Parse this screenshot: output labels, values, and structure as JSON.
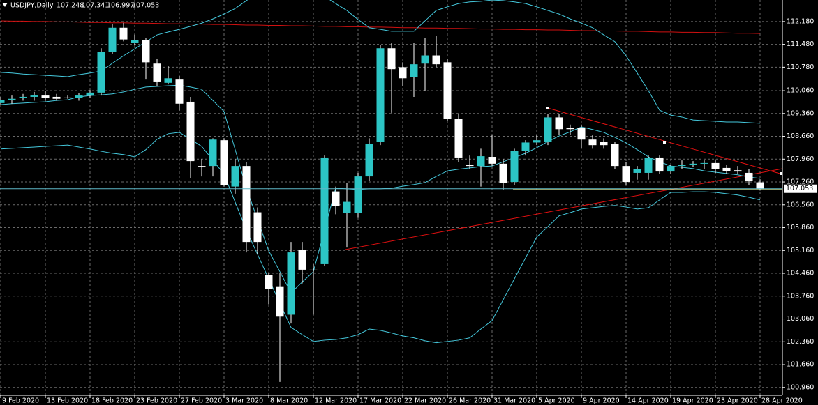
{
  "chart_data": {
    "type": "candlestick",
    "title": "USDJPY,Daily",
    "categories": [
      "9 Feb 2020",
      null,
      null,
      null,
      "13 Feb 2020",
      null,
      null,
      null,
      "18 Feb 2020",
      null,
      null,
      null,
      "23 Feb 2020",
      null,
      null,
      null,
      "27 Feb 2020",
      null,
      null,
      null,
      "3 Mar 2020",
      null,
      null,
      null,
      "8 Mar 2020",
      null,
      null,
      null,
      "12 Mar 2020",
      null,
      null,
      null,
      "17 Mar 2020",
      null,
      null,
      null,
      "22 Mar 2020",
      null,
      null,
      null,
      "26 Mar 2020",
      null,
      null,
      null,
      "31 Mar 2020",
      null,
      null,
      null,
      "5 Apr 2020",
      null,
      null,
      null,
      "9 Apr 2020",
      null,
      null,
      null,
      "14 Apr 2020",
      null,
      null,
      null,
      "19 Apr 2020",
      null,
      null,
      null,
      "23 Apr 2020",
      null,
      null,
      null,
      "28 Apr 2020"
    ],
    "open": [
      109.68,
      109.77,
      109.83,
      109.87,
      109.91,
      109.87,
      109.85,
      109.83,
      109.91,
      110.0,
      111.25,
      111.99,
      111.53,
      111.61,
      110.89,
      110.3,
      110.4,
      109.72,
      107.75,
      107.75,
      108.54,
      107.12,
      107.75,
      106.33,
      104.4,
      104.04,
      103.19,
      105.17,
      104.57,
      104.74,
      106.97,
      106.31,
      106.31,
      107.43,
      108.49,
      111.36,
      110.78,
      110.47,
      110.89,
      111.14,
      110.93,
      109.19,
      107.79,
      107.75,
      108.03,
      107.82,
      107.26,
      108.22,
      108.47,
      108.49,
      109.24,
      108.92,
      108.92,
      108.56,
      108.49,
      108.43,
      107.75,
      107.54,
      107.54,
      108.01,
      107.58,
      107.75,
      107.79,
      107.82,
      107.84,
      107.69,
      107.62,
      107.54,
      107.248
    ],
    "high": [
      109.87,
      109.91,
      109.96,
      110.02,
      110.04,
      109.96,
      109.91,
      109.98,
      110.08,
      111.36,
      112.1,
      112.14,
      111.78,
      111.67,
      111.04,
      110.83,
      110.51,
      109.87,
      107.96,
      108.6,
      108.6,
      107.96,
      107.86,
      106.48,
      104.47,
      104.47,
      105.42,
      105.42,
      104.74,
      108.07,
      107.12,
      107.22,
      107.54,
      108.6,
      111.46,
      111.53,
      110.93,
      111.53,
      111.67,
      111.74,
      111.04,
      109.34,
      108.07,
      108.28,
      108.71,
      107.96,
      108.28,
      108.54,
      108.71,
      109.34,
      109.34,
      109.02,
      109.02,
      108.71,
      108.6,
      108.49,
      107.86,
      107.75,
      108.07,
      108.07,
      107.79,
      107.92,
      107.9,
      107.92,
      107.92,
      107.79,
      107.75,
      107.65,
      107.341
    ],
    "low": [
      109.62,
      109.66,
      109.75,
      109.75,
      109.75,
      109.75,
      109.81,
      109.75,
      109.83,
      109.91,
      111.19,
      111.57,
      111.44,
      110.4,
      110.19,
      110.25,
      109.45,
      107.37,
      107.43,
      107.43,
      107.12,
      106.9,
      105.1,
      105.04,
      103.51,
      101.13,
      102.92,
      104.15,
      103.19,
      104.68,
      106.27,
      105.25,
      106.16,
      107.29,
      108.39,
      109.38,
      110.19,
      109.87,
      110.04,
      110.78,
      109.13,
      107.86,
      107.65,
      107.12,
      107.75,
      107.01,
      107.16,
      108.07,
      108.39,
      108.39,
      108.71,
      108.71,
      108.28,
      108.28,
      108.28,
      107.65,
      107.16,
      107.33,
      107.33,
      107.5,
      107.5,
      107.65,
      107.71,
      107.65,
      107.54,
      107.5,
      107.5,
      107.16,
      106.997
    ],
    "close": [
      109.77,
      109.81,
      109.87,
      109.91,
      109.83,
      109.81,
      109.84,
      109.91,
      110.0,
      111.25,
      111.99,
      111.63,
      111.61,
      110.93,
      110.34,
      110.44,
      109.66,
      107.9,
      107.74,
      108.56,
      107.16,
      107.75,
      105.42,
      105.42,
      103.98,
      103.13,
      105.1,
      104.57,
      104.56,
      108.01,
      106.52,
      106.65,
      107.43,
      108.43,
      111.36,
      110.72,
      110.44,
      110.87,
      111.14,
      110.87,
      109.19,
      108.01,
      107.75,
      108.05,
      107.82,
      107.22,
      108.22,
      108.47,
      108.54,
      109.24,
      108.88,
      108.88,
      108.56,
      108.39,
      108.39,
      107.75,
      107.26,
      107.65,
      108.01,
      107.58,
      107.75,
      107.79,
      107.82,
      107.84,
      107.65,
      107.6,
      107.58,
      107.29,
      107.053
    ],
    "up_color": "#2cc5c5",
    "down_color": "#ffffff",
    "wick_color": "#ffffff",
    "overlays": [
      {
        "color": "#d01010",
        "values": [
          112.2,
          112.19,
          112.19,
          112.18,
          112.18,
          112.17,
          112.17,
          112.16,
          112.15,
          112.15,
          112.14,
          112.14,
          112.13,
          112.13,
          112.12,
          112.11,
          112.11,
          112.1,
          112.1,
          112.09,
          112.09,
          112.08,
          112.07,
          112.07,
          112.06,
          112.06,
          112.05,
          112.05,
          112.04,
          112.03,
          112.03,
          112.02,
          112.02,
          112.01,
          112.01,
          112.0,
          111.99,
          111.99,
          111.98,
          111.98,
          111.97,
          111.97,
          111.96,
          111.95,
          111.95,
          111.94,
          111.94,
          111.93,
          111.93,
          111.92,
          111.92,
          111.91,
          111.9,
          111.9,
          111.89,
          111.89,
          111.88,
          111.88,
          111.87,
          111.86,
          111.86,
          111.85,
          111.85,
          111.84,
          111.84,
          111.83,
          111.82,
          111.82,
          111.81
        ]
      },
      {
        "color": "#45c8dc",
        "values": [
          109.63,
          109.66,
          109.68,
          109.7,
          109.72,
          109.76,
          109.78,
          109.87,
          109.91,
          109.93,
          109.96,
          110.02,
          110.1,
          110.17,
          110.19,
          110.21,
          110.23,
          110.17,
          110.1,
          109.76,
          109.42,
          108.25,
          107.07,
          106.11,
          105.15,
          104.51,
          103.86,
          104.19,
          104.51,
          105.79,
          107.07,
          107.05,
          107.03,
          107.05,
          107.05,
          107.07,
          107.13,
          107.18,
          107.24,
          107.43,
          107.6,
          107.65,
          107.69,
          107.73,
          107.75,
          107.88,
          108.01,
          108.14,
          108.31,
          108.5,
          108.67,
          108.8,
          108.95,
          108.87,
          108.78,
          108.63,
          108.46,
          108.25,
          108.03,
          107.88,
          107.75,
          107.71,
          107.67,
          107.6,
          107.56,
          107.52,
          107.48,
          107.41,
          107.37
        ]
      },
      {
        "color": "#45c8dc",
        "values": [
          110.62,
          110.6,
          110.57,
          110.55,
          110.53,
          110.51,
          110.49,
          110.55,
          110.6,
          110.66,
          110.9,
          111.13,
          111.34,
          111.56,
          111.77,
          111.86,
          111.94,
          112.03,
          112.13,
          112.26,
          112.41,
          112.58,
          112.82,
          113.05,
          113.27,
          113.48,
          113.48,
          113.48,
          113.31,
          112.95,
          112.73,
          112.52,
          112.24,
          111.99,
          111.94,
          111.88,
          111.88,
          111.88,
          112.2,
          112.52,
          112.63,
          112.73,
          112.78,
          112.8,
          112.84,
          112.82,
          112.78,
          112.73,
          112.63,
          112.52,
          112.41,
          112.26,
          112.13,
          111.99,
          111.77,
          111.56,
          111.13,
          110.6,
          110.06,
          109.46,
          109.31,
          109.25,
          109.16,
          109.14,
          109.12,
          109.1,
          109.1,
          109.08,
          109.06
        ]
      },
      {
        "color": "#45c8dc",
        "values": [
          108.27,
          108.29,
          108.31,
          108.33,
          108.35,
          108.37,
          108.39,
          108.33,
          108.27,
          108.2,
          108.14,
          108.1,
          108.03,
          108.25,
          108.57,
          108.74,
          108.78,
          108.57,
          108.35,
          107.93,
          107.5,
          106.64,
          105.79,
          105.04,
          104.29,
          103.54,
          102.8,
          102.58,
          102.37,
          102.41,
          102.43,
          102.48,
          102.58,
          102.75,
          102.71,
          102.63,
          102.54,
          102.48,
          102.39,
          102.33,
          102.37,
          102.41,
          102.48,
          102.75,
          103.01,
          103.65,
          104.29,
          104.93,
          105.57,
          105.89,
          106.22,
          106.32,
          106.43,
          106.47,
          106.51,
          106.54,
          106.49,
          106.43,
          106.47,
          106.71,
          106.94,
          106.94,
          106.96,
          106.96,
          106.94,
          106.9,
          106.86,
          106.79,
          106.71
        ]
      }
    ],
    "ylim": [
      100.72,
      112.84
    ],
    "yticks": [
      {
        "value": 112.18,
        "label": "112.180"
      },
      {
        "value": 111.48,
        "label": "111.480"
      },
      {
        "value": 110.78,
        "label": "110.780"
      },
      {
        "value": 110.06,
        "label": "110.060"
      },
      {
        "value": 109.36,
        "label": "109.360"
      },
      {
        "value": 108.66,
        "label": "108.660"
      },
      {
        "value": 107.96,
        "label": "107.960"
      },
      {
        "value": 107.26,
        "label": "107.260"
      },
      {
        "value": 106.56,
        "label": "106.560"
      },
      {
        "value": 105.86,
        "label": "105.860"
      },
      {
        "value": 105.16,
        "label": "105.160"
      },
      {
        "value": 104.46,
        "label": "104.460"
      },
      {
        "value": 103.76,
        "label": "103.760"
      },
      {
        "value": 103.06,
        "label": "103.060"
      },
      {
        "value": 102.36,
        "label": "102.360"
      },
      {
        "value": 101.66,
        "label": "101.660"
      },
      {
        "value": 100.96,
        "label": "100.960"
      }
    ],
    "grid": true
  }
}
